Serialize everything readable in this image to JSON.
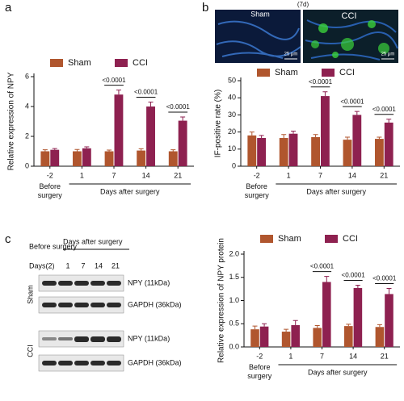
{
  "panels": [
    "a",
    "b",
    "c"
  ],
  "images": {
    "sham_label": "Sham",
    "timepoint": "(7d)",
    "cci_label": "CCI",
    "scale_bar": "25 μm"
  },
  "blot": {
    "before_label": "Before surgery",
    "after_label": "Days after surgery",
    "days_label": "Days(2)",
    "lanes": [
      "1",
      "7",
      "14",
      "21"
    ],
    "rows": [
      "Sham",
      "CCI"
    ],
    "bands": [
      "NPY (11kDa)",
      "GAPDH (36kDa)"
    ]
  },
  "chart_data": [
    {
      "type": "bar",
      "y_label": "Relative expression of NPY",
      "legend": "top",
      "categories": [
        "-2",
        "1",
        "7",
        "14",
        "21"
      ],
      "groups": [
        "Before surgery",
        "Days after surgery"
      ],
      "series": [
        {
          "name": "Sham",
          "color": "#b0562e",
          "values": [
            1.0,
            1.0,
            1.0,
            1.05,
            1.0
          ],
          "errors": [
            0.1,
            0.12,
            0.08,
            0.12,
            0.1
          ]
        },
        {
          "name": "CCI",
          "color": "#8e2150",
          "values": [
            1.1,
            1.2,
            4.8,
            4.0,
            3.05
          ],
          "errors": [
            0.08,
            0.1,
            0.3,
            0.3,
            0.25
          ]
        }
      ],
      "annotations": [
        null,
        null,
        "<0.0001",
        "<0.0001",
        "<0.0001"
      ],
      "ylim": [
        0,
        6
      ],
      "yticks": [
        0,
        2,
        4,
        6
      ]
    },
    {
      "type": "bar",
      "y_label": "IF-positive rate (%)",
      "legend": "top",
      "categories": [
        "-2",
        "1",
        "7",
        "14",
        "21"
      ],
      "groups": [
        "Before surgery",
        "Days after surgery"
      ],
      "series": [
        {
          "name": "Sham",
          "color": "#b0562e",
          "values": [
            18,
            16.5,
            17,
            15.5,
            16
          ],
          "errors": [
            2,
            2,
            1.5,
            1.5,
            1
          ]
        },
        {
          "name": "CCI",
          "color": "#8e2150",
          "values": [
            16.5,
            19,
            41,
            30,
            25.5
          ],
          "errors": [
            1.5,
            1.5,
            2.5,
            2,
            2
          ]
        }
      ],
      "annotations": [
        null,
        null,
        "<0.0001",
        "<0.0001",
        "<0.0001"
      ],
      "ylim": [
        0,
        50
      ],
      "yticks": [
        0,
        10,
        20,
        30,
        40,
        50
      ]
    },
    {
      "type": "bar",
      "y_label": "Relative expression of NPY protein",
      "legend": "top",
      "categories": [
        "-2",
        "1",
        "7",
        "14",
        "21"
      ],
      "groups": [
        "Before surgery",
        "Days after surgery"
      ],
      "series": [
        {
          "name": "Sham",
          "color": "#b0562e",
          "values": [
            0.38,
            0.33,
            0.41,
            0.45,
            0.43
          ],
          "errors": [
            0.07,
            0.05,
            0.05,
            0.04,
            0.05
          ]
        },
        {
          "name": "CCI",
          "color": "#8e2150",
          "values": [
            0.44,
            0.47,
            1.4,
            1.27,
            1.14
          ],
          "errors": [
            0.06,
            0.1,
            0.12,
            0.06,
            0.12
          ]
        }
      ],
      "annotations": [
        null,
        null,
        "<0.0001",
        "<0.0001",
        "<0.0001"
      ],
      "ylim": [
        0,
        2
      ],
      "yticks": [
        {
          "value": 0,
          "label": "0.0"
        },
        {
          "value": 0.5,
          "label": "0.5"
        },
        {
          "value": 1,
          "label": "1.0"
        },
        {
          "value": 1.5,
          "label": "1.5"
        },
        {
          "value": 2,
          "label": "2.0"
        }
      ]
    }
  ]
}
